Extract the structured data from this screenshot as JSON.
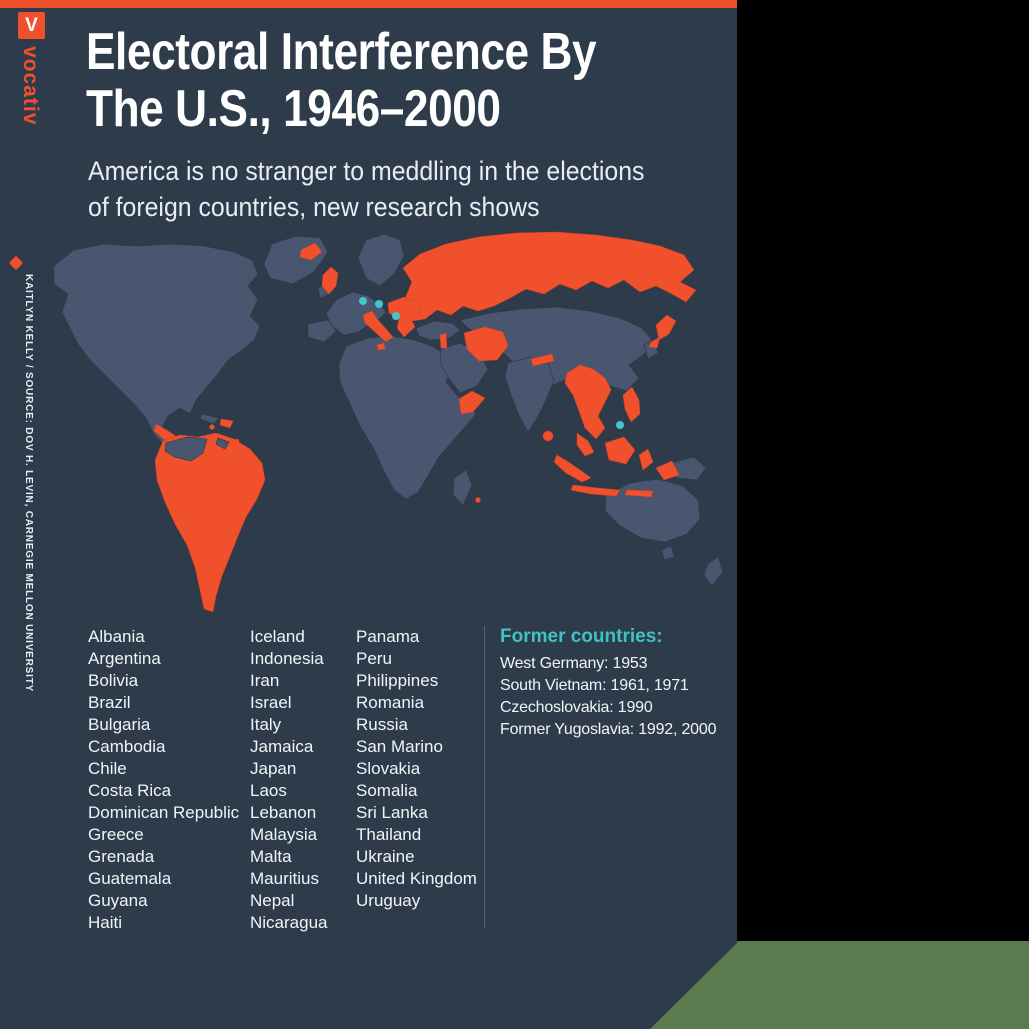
{
  "brand": {
    "logo_letter": "V",
    "wordmark": "vocativ",
    "credit": "KAITLYN KELLY / SOURCE: DOV H. LEVIN, CARNEGIE MELLON UNIVERSITY"
  },
  "header": {
    "title_line1": "Electoral Interference By",
    "title_line2": "The U.S., 1946–2000",
    "subtitle_line1": "America is no stranger to meddling in the elections",
    "subtitle_line2": "of foreign countries, new research shows"
  },
  "countries": {
    "column1": [
      "Albania",
      "Argentina",
      "Bolivia",
      "Brazil",
      "Bulgaria",
      "Cambodia",
      "Chile",
      "Costa Rica",
      "Dominican Republic",
      "Greece",
      "Grenada",
      "Guatemala",
      "Guyana",
      "Haiti"
    ],
    "column2": [
      "Iceland",
      "Indonesia",
      "Iran",
      "Israel",
      "Italy",
      "Jamaica",
      "Japan",
      "Laos",
      "Lebanon",
      "Malaysia",
      "Malta",
      "Mauritius",
      "Nepal",
      "Nicaragua"
    ],
    "column3": [
      "Panama",
      "Peru",
      "Philippines",
      "Romania",
      "Russia",
      "San Marino",
      "Slovakia",
      "Somalia",
      "Sri Lanka",
      "Thailand",
      "Ukraine",
      "United Kingdom",
      "Uruguay"
    ]
  },
  "former_countries": {
    "heading": "Former countries:",
    "items": [
      "West Germany: 1953",
      "South Vietnam: 1961, 1971",
      "Czechoslovakia: 1990",
      "Former Yugoslavia: 1992, 2000"
    ]
  },
  "colors": {
    "background": "#2e3b4b",
    "accent_orange": "#f1502c",
    "map_land": "#495670",
    "former_dot_teal": "#45c4c9",
    "heading_teal": "#3fc1c5",
    "desk_green": "#5b7a4e",
    "outer_black": "#000000"
  }
}
